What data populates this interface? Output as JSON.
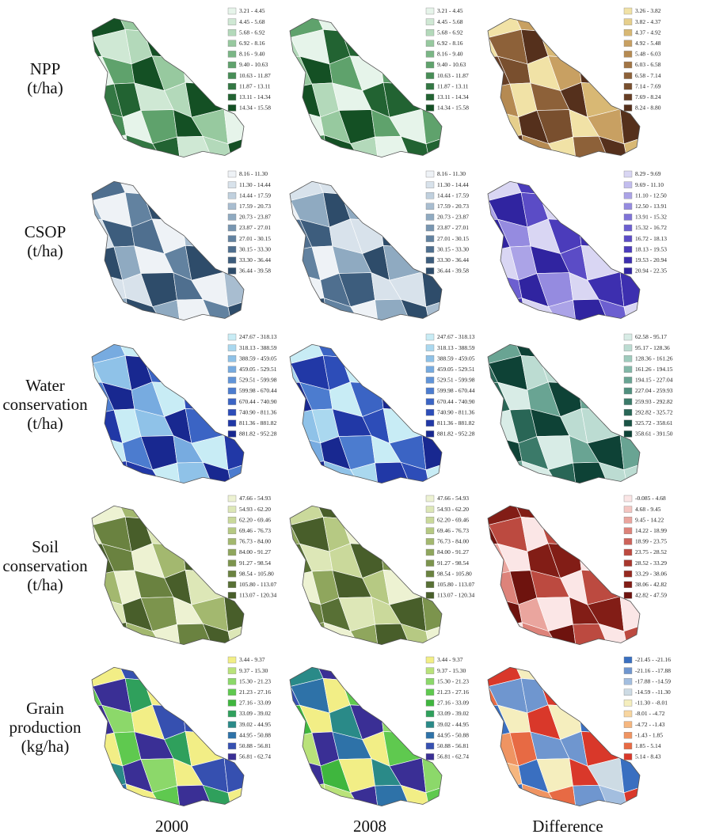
{
  "columns": [
    "2000",
    "2008",
    "Difference"
  ],
  "rows": [
    {
      "label": [
        "NPP",
        "(t/ha)"
      ],
      "panels": [
        {
          "ranges": [
            "3.21 - 4.45",
            "4.45 - 5.68",
            "5.68 - 6.92",
            "6.92 - 8.16",
            "8.16 - 9.40",
            "9.40 - 10.63",
            "10.63 - 11.87",
            "11.87 - 13.11",
            "13.11 - 14.34",
            "14.34 - 15.58"
          ],
          "colors": [
            "#e6f4ea",
            "#cfe8d4",
            "#b3d9ba",
            "#97c99f",
            "#7ab685",
            "#5fa26c",
            "#478d56",
            "#337743",
            "#226332",
            "#145024"
          ]
        },
        {
          "ranges": [
            "3.21 - 4.45",
            "4.45 - 5.68",
            "5.68 - 6.92",
            "6.92 - 8.16",
            "8.16 - 9.40",
            "9.40 - 10.63",
            "10.63 - 11.87",
            "11.87 - 13.11",
            "13.11 - 14.34",
            "14.34 - 15.58"
          ],
          "colors": [
            "#e6f4ea",
            "#cfe8d4",
            "#b3d9ba",
            "#97c99f",
            "#7ab685",
            "#5fa26c",
            "#478d56",
            "#337743",
            "#226332",
            "#145024"
          ]
        },
        {
          "ranges": [
            "3.26 - 3.82",
            "3.82 - 4.37",
            "4.37 - 4.92",
            "4.92 - 5.48",
            "5.48 - 6.03",
            "6.03 - 6.58",
            "6.58 - 7.14",
            "7.14 - 7.69",
            "7.69 - 8.24",
            "8.24 - 8.80"
          ],
          "colors": [
            "#f1e2a6",
            "#e6cf8c",
            "#d8b874",
            "#c8a062",
            "#b58a52",
            "#a27545",
            "#8d6139",
            "#794f2e",
            "#663e24",
            "#55301c"
          ]
        }
      ]
    },
    {
      "label": [
        "CSOP",
        "(t/ha)"
      ],
      "panels": [
        {
          "ranges": [
            "8.16 - 11.30",
            "11.30 - 14.44",
            "14.44 - 17.59",
            "17.59 - 20.73",
            "20.73 - 23.87",
            "23.87 - 27.01",
            "27.01 - 30.15",
            "30.15 - 33.30",
            "33.30 - 36.44",
            "36.44 - 39.58"
          ],
          "colors": [
            "#eef2f6",
            "#d8e2eb",
            "#c0d0de",
            "#a8bdd0",
            "#8faac1",
            "#7896b1",
            "#6282a0",
            "#4f6f8f",
            "#3d5d7d",
            "#2e4c6a"
          ]
        },
        {
          "ranges": [
            "8.16 - 11.30",
            "11.30 - 14.44",
            "14.44 - 17.59",
            "17.59 - 20.73",
            "20.73 - 23.87",
            "23.87 - 27.01",
            "27.01 - 30.15",
            "30.15 - 33.30",
            "33.30 - 36.44",
            "36.44 - 39.58"
          ],
          "colors": [
            "#eef2f6",
            "#d8e2eb",
            "#c0d0de",
            "#a8bdd0",
            "#8faac1",
            "#7896b1",
            "#6282a0",
            "#4f6f8f",
            "#3d5d7d",
            "#2e4c6a"
          ]
        },
        {
          "ranges": [
            "8.29 - 9.69",
            "9.69 - 11.10",
            "11.10 - 12.50",
            "12.50 - 13.91",
            "13.91 - 15.32",
            "15.32 - 16.72",
            "16.72 - 18.13",
            "18.13 - 19.53",
            "19.53 - 20.94",
            "20.94 - 22.35"
          ],
          "colors": [
            "#d9d6f3",
            "#c2bdee",
            "#aba3e7",
            "#958be0",
            "#7f73d8",
            "#6c5fd0",
            "#5b4cc6",
            "#4b3cbb",
            "#3d2faf",
            "#3024a0"
          ]
        }
      ]
    },
    {
      "label": [
        "Water",
        "conservation",
        "(t/ha)"
      ],
      "panels": [
        {
          "ranges": [
            "247.67 - 318.13",
            "318.13 - 388.59",
            "388.59 - 459.05",
            "459.05 - 529.51",
            "529.51 - 599.98",
            "599.98 - 670.44",
            "670.44 - 740.90",
            "740.90 - 811.36",
            "811.36 - 881.82",
            "881.82 - 952.28"
          ],
          "colors": [
            "#c8ecf5",
            "#aad8ef",
            "#8fc2e8",
            "#77abe0",
            "#6194d8",
            "#4c7ccf",
            "#3b64c4",
            "#2d4db8",
            "#2138a6",
            "#182890"
          ]
        },
        {
          "ranges": [
            "247.67 - 318.13",
            "318.13 - 388.59",
            "388.59 - 459.05",
            "459.05 - 529.51",
            "529.51 - 599.98",
            "599.98 - 670.44",
            "670.44 - 740.90",
            "740.90 - 811.36",
            "811.36 - 881.82",
            "881.82 - 952.28"
          ],
          "colors": [
            "#c8ecf5",
            "#aad8ef",
            "#8fc2e8",
            "#77abe0",
            "#6194d8",
            "#4c7ccf",
            "#3b64c4",
            "#2d4db8",
            "#2138a6",
            "#182890"
          ]
        },
        {
          "ranges": [
            "62.58 - 95.17",
            "95.17 - 128.36",
            "128.36 - 161.26",
            "161.26 - 194.15",
            "194.15 - 227.04",
            "227.04 - 259.93",
            "259.93 - 292.82",
            "292.82 - 325.72",
            "325.72 - 358.61",
            "358.61 - 391.50"
          ],
          "colors": [
            "#d8ece6",
            "#bcdcd2",
            "#9fcbbd",
            "#83b8a8",
            "#69a493",
            "#518f7e",
            "#3b7a69",
            "#296656",
            "#1a5345",
            "#0e4236"
          ]
        }
      ]
    },
    {
      "label": [
        "Soil",
        "conservation",
        "(t/ha)"
      ],
      "panels": [
        {
          "ranges": [
            "47.66 - 54.93",
            "54.93 - 62.20",
            "62.20 - 69.46",
            "69.46 - 76.73",
            "76.73 - 84.00",
            "84.00 - 91.27",
            "91.27 - 98.54",
            "98.54 - 105.80",
            "105.80 - 113.07",
            "113.07 - 120.34"
          ],
          "colors": [
            "#edf2d2",
            "#dde7b7",
            "#cad99b",
            "#b6c983",
            "#a3b86f",
            "#8fa65d",
            "#7c944d",
            "#6a8240",
            "#587035",
            "#485e2a"
          ]
        },
        {
          "ranges": [
            "47.66 - 54.93",
            "54.93 - 62.20",
            "62.20 - 69.46",
            "69.46 - 76.73",
            "76.73 - 84.00",
            "84.00 - 91.27",
            "91.27 - 98.54",
            "98.54 - 105.80",
            "105.80 - 113.07",
            "113.07 - 120.34"
          ],
          "colors": [
            "#edf2d2",
            "#dde7b7",
            "#cad99b",
            "#b6c983",
            "#a3b86f",
            "#8fa65d",
            "#7c944d",
            "#6a8240",
            "#587035",
            "#485e2a"
          ]
        },
        {
          "ranges": [
            "-0.085 - 4.68",
            "4.68 - 9.45",
            "9.45 - 14.22",
            "14.22 - 18.99",
            "18.99 - 23.75",
            "23.75 - 28.52",
            "28.52 - 33.29",
            "33.29 - 38.06",
            "38.06 - 42.82",
            "42.82 - 47.59"
          ],
          "colors": [
            "#fbe6e6",
            "#f4c6c2",
            "#eaa59e",
            "#dd837a",
            "#cd635a",
            "#bc4a40",
            "#a8372d",
            "#962920",
            "#821d16",
            "#6e130e"
          ]
        }
      ]
    },
    {
      "label": [
        "Grain",
        "production",
        "(kg/ha)"
      ],
      "panels": [
        {
          "ranges": [
            "3.44 - 9.37",
            "9.37 - 15.30",
            "15.30 - 21.23",
            "21.23 - 27.16",
            "27.16 - 33.09",
            "33.09 - 39.02",
            "39.02 - 44.95",
            "44.95 - 50.88",
            "50.88 - 56.81",
            "56.81 - 62.74"
          ],
          "colors": [
            "#f2ee86",
            "#b9e27a",
            "#8cd86a",
            "#5fc94f",
            "#3fb63e",
            "#2fa05c",
            "#2a8a88",
            "#2e72a8",
            "#3650b0",
            "#3a2f95"
          ]
        },
        {
          "ranges": [
            "3.44 - 9.37",
            "9.37 - 15.30",
            "15.30 - 21.23",
            "21.23 - 27.16",
            "27.16 - 33.09",
            "33.09 - 39.02",
            "39.02 - 44.95",
            "44.95 - 50.88",
            "50.88 - 56.81",
            "56.81 - 62.74"
          ],
          "colors": [
            "#f2ee86",
            "#b9e27a",
            "#8cd86a",
            "#5fc94f",
            "#3fb63e",
            "#2fa05c",
            "#2a8a88",
            "#2e72a8",
            "#3650b0",
            "#3a2f95"
          ]
        },
        {
          "ranges": [
            "-21.45 - -21.16",
            "-21.16 - -17.88",
            "-17.88 - -14.59",
            "-14.59 - -11.30",
            "-11.30 - -8.01",
            "-8.01 - -4.72",
            "-4.72 - -1.43",
            "-1.43 - 1.85",
            "1.85 - 5.14",
            "5.14 - 8.43"
          ],
          "colors": [
            "#3a6fc0",
            "#6f96cf",
            "#a3bedf",
            "#cddbe4",
            "#f5eebe",
            "#f8d6a0",
            "#f5b67f",
            "#ef9462",
            "#e76a44",
            "#d9382a"
          ]
        }
      ]
    }
  ]
}
